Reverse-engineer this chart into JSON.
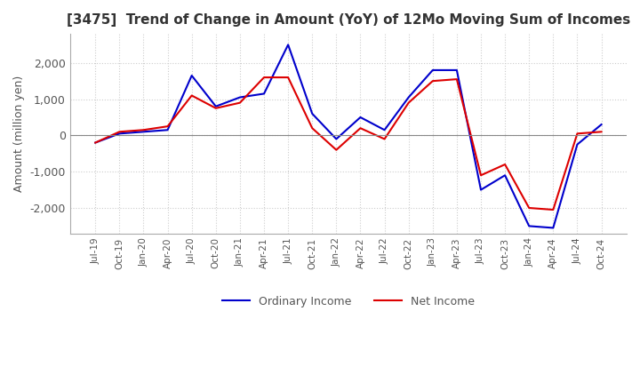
{
  "title": "[3475]  Trend of Change in Amount (YoY) of 12Mo Moving Sum of Incomes",
  "ylabel": "Amount (million yen)",
  "ylim": [
    -2700,
    2800
  ],
  "yticks": [
    -2000,
    -1000,
    0,
    1000,
    2000
  ],
  "background_color": "#ffffff",
  "grid_color": "#cccccc",
  "grid_style": "dotted",
  "ordinary_income_color": "#0000cc",
  "net_income_color": "#dd0000",
  "x_labels": [
    "Jul-19",
    "Oct-19",
    "Jan-20",
    "Apr-20",
    "Jul-20",
    "Oct-20",
    "Jan-21",
    "Apr-21",
    "Jul-21",
    "Oct-21",
    "Jan-22",
    "Apr-22",
    "Jul-22",
    "Oct-22",
    "Jan-23",
    "Apr-23",
    "Jul-23",
    "Oct-23",
    "Jan-24",
    "Apr-24",
    "Jul-24",
    "Oct-24"
  ],
  "ordinary_income": [
    -200,
    50,
    100,
    150,
    1650,
    800,
    1050,
    1150,
    2500,
    600,
    -100,
    500,
    150,
    1050,
    1800,
    1800,
    -1500,
    -1100,
    -2500,
    -2550,
    -250,
    300
  ],
  "net_income": [
    -200,
    100,
    150,
    250,
    1100,
    750,
    900,
    1600,
    1600,
    200,
    -400,
    200,
    -100,
    900,
    1500,
    1550,
    -1100,
    -800,
    -2000,
    -2050,
    50,
    100
  ]
}
